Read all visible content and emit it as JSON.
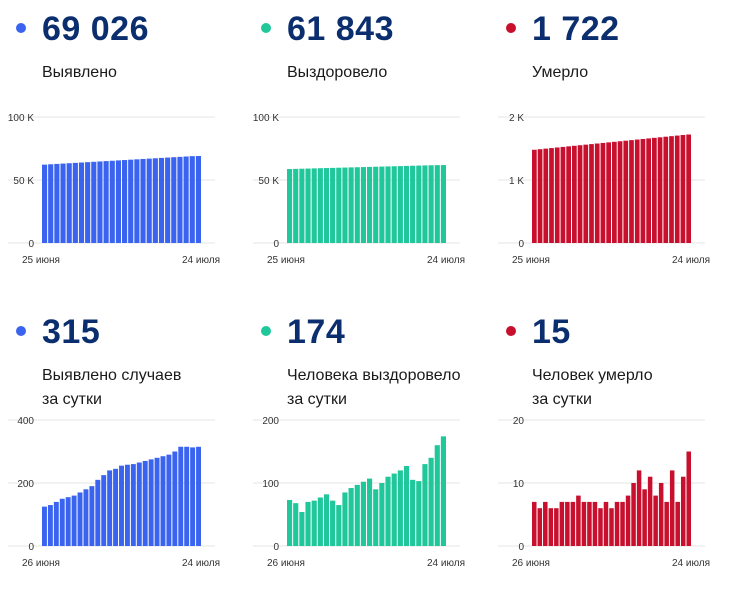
{
  "panels": [
    {
      "color": "#3a64f0",
      "value": "69 026",
      "label_lines": [
        "Выявлено"
      ],
      "chart_data": {
        "type": "bar",
        "y_ticks": [
          {
            "v": 100000,
            "label": "100 K"
          },
          {
            "v": 50000,
            "label": "50 K"
          },
          {
            "v": 0,
            "label": "0"
          }
        ],
        "ylim": [
          0,
          100000
        ],
        "x_labels": [
          "25 июня",
          "24 июля"
        ],
        "values": [
          62200,
          62480,
          62760,
          63040,
          63320,
          63600,
          63880,
          64160,
          64440,
          64720,
          65000,
          65280,
          65560,
          65840,
          66120,
          66400,
          66680,
          66960,
          67240,
          67520,
          67800,
          68080,
          68360,
          68640,
          68920,
          69026
        ]
      }
    },
    {
      "color": "#1fc79a",
      "value": "61 843",
      "label_lines": [
        "Выздоровело"
      ],
      "chart_data": {
        "type": "bar",
        "y_ticks": [
          {
            "v": 100000,
            "label": "100 K"
          },
          {
            "v": 50000,
            "label": "50 K"
          },
          {
            "v": 0,
            "label": "0"
          }
        ],
        "ylim": [
          0,
          100000
        ],
        "x_labels": [
          "25 июня",
          "24 июля"
        ],
        "values": [
          58700,
          58830,
          58960,
          59090,
          59220,
          59350,
          59480,
          59610,
          59740,
          59870,
          60000,
          60130,
          60260,
          60390,
          60520,
          60650,
          60780,
          60910,
          61040,
          61170,
          61300,
          61430,
          61560,
          61690,
          61800,
          61843
        ]
      }
    },
    {
      "color": "#c8102e",
      "value": "1 722",
      "label_lines": [
        "Умерло"
      ],
      "chart_data": {
        "type": "bar",
        "y_ticks": [
          {
            "v": 2000,
            "label": "2 K"
          },
          {
            "v": 1000,
            "label": "1 K"
          },
          {
            "v": 0,
            "label": "0"
          }
        ],
        "ylim": [
          0,
          2000
        ],
        "x_labels": [
          "25 июня",
          "24 июля"
        ],
        "values": [
          1480,
          1489,
          1498,
          1507,
          1516,
          1525,
          1534,
          1543,
          1552,
          1561,
          1570,
          1579,
          1588,
          1597,
          1606,
          1615,
          1624,
          1633,
          1642,
          1651,
          1660,
          1669,
          1678,
          1687,
          1696,
          1705,
          1714,
          1722
        ]
      }
    },
    {
      "color": "#3a64f0",
      "value": "315",
      "label_lines": [
        "Выявлено случаев",
        "за сутки"
      ],
      "chart_data": {
        "type": "bar",
        "y_ticks": [
          {
            "v": 400,
            "label": "400"
          },
          {
            "v": 200,
            "label": "200"
          },
          {
            "v": 0,
            "label": "0"
          }
        ],
        "ylim": [
          0,
          400
        ],
        "x_labels": [
          "26 июня",
          "24 июля"
        ],
        "values": [
          125,
          130,
          140,
          150,
          155,
          160,
          170,
          180,
          190,
          210,
          225,
          240,
          245,
          255,
          258,
          260,
          265,
          270,
          275,
          280,
          285,
          290,
          300,
          315,
          315,
          313,
          315
        ]
      }
    },
    {
      "color": "#1fc79a",
      "value": "174",
      "label_lines": [
        "Человека выздоровело",
        "за сутки"
      ],
      "chart_data": {
        "type": "bar",
        "y_ticks": [
          {
            "v": 200,
            "label": "200"
          },
          {
            "v": 100,
            "label": "100"
          },
          {
            "v": 0,
            "label": "0"
          }
        ],
        "ylim": [
          0,
          200
        ],
        "x_labels": [
          "26 июня",
          "24 июля"
        ],
        "values": [
          73,
          68,
          54,
          70,
          72,
          77,
          82,
          72,
          65,
          85,
          92,
          97,
          102,
          107,
          90,
          100,
          110,
          115,
          120,
          127,
          105,
          103,
          130,
          140,
          160,
          174
        ]
      }
    },
    {
      "color": "#c8102e",
      "value": "15",
      "label_lines": [
        "Человек умерло",
        "за сутки"
      ],
      "chart_data": {
        "type": "bar",
        "y_ticks": [
          {
            "v": 20,
            "label": "20"
          },
          {
            "v": 10,
            "label": "10"
          },
          {
            "v": 0,
            "label": "0"
          }
        ],
        "ylim": [
          0,
          20
        ],
        "x_labels": [
          "26 июня",
          "24 июля"
        ],
        "values": [
          7,
          6,
          7,
          6,
          6,
          7,
          7,
          7,
          8,
          7,
          7,
          7,
          6,
          7,
          6,
          7,
          7,
          8,
          10,
          12,
          9,
          11,
          8,
          10,
          7,
          12,
          7,
          11,
          15
        ]
      }
    }
  ]
}
